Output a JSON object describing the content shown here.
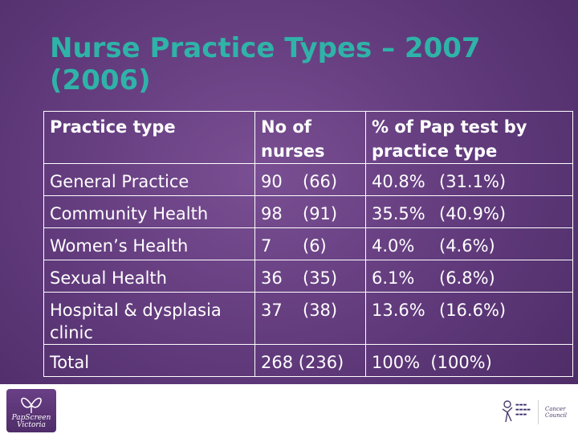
{
  "slide": {
    "title": "Nurse Practice Types – 2007 (2006)"
  },
  "table": {
    "headers": [
      "Practice type",
      "No of nurses",
      "% of Pap test by practice type"
    ],
    "rows": [
      {
        "type": "General Practice",
        "nurses_2007": "90",
        "nurses_2006": "(66)",
        "pct_2007": "40.8%",
        "pct_2006": "(31.1%)"
      },
      {
        "type": "Community Health",
        "nurses_2007": "98",
        "nurses_2006": "(91)",
        "pct_2007": "35.5%",
        "pct_2006": "(40.9%)"
      },
      {
        "type": "Women’s Health",
        "nurses_2007": "7",
        "nurses_2006": "(6)",
        "pct_2007": "4.0%",
        "pct_2006": "(4.6%)"
      },
      {
        "type": "Sexual Health",
        "nurses_2007": "36",
        "nurses_2006": "(35)",
        "pct_2007": "6.1%",
        "pct_2006": "(6.8%)"
      },
      {
        "type": "Hospital & dysplasia clinic",
        "nurses_2007": "37",
        "nurses_2006": "(38)",
        "pct_2007": "13.6%",
        "pct_2006": "(16.6%)"
      },
      {
        "type": "Total",
        "nurses_2007": "268",
        "nurses_2006": "(236)",
        "pct_2007": "100%",
        "pct_2006": "(100%)"
      }
    ]
  },
  "footer": {
    "left_logo_text": [
      "PapScreen",
      "Victoria"
    ],
    "left_logo_icon": "butterfly-icon",
    "right_logo_1_icon": "figure-logo-icon",
    "right_logo_2_text": [
      "Cancer",
      "Council"
    ],
    "brand_color": "#2fb3a8",
    "background_color": "#5e3879"
  }
}
